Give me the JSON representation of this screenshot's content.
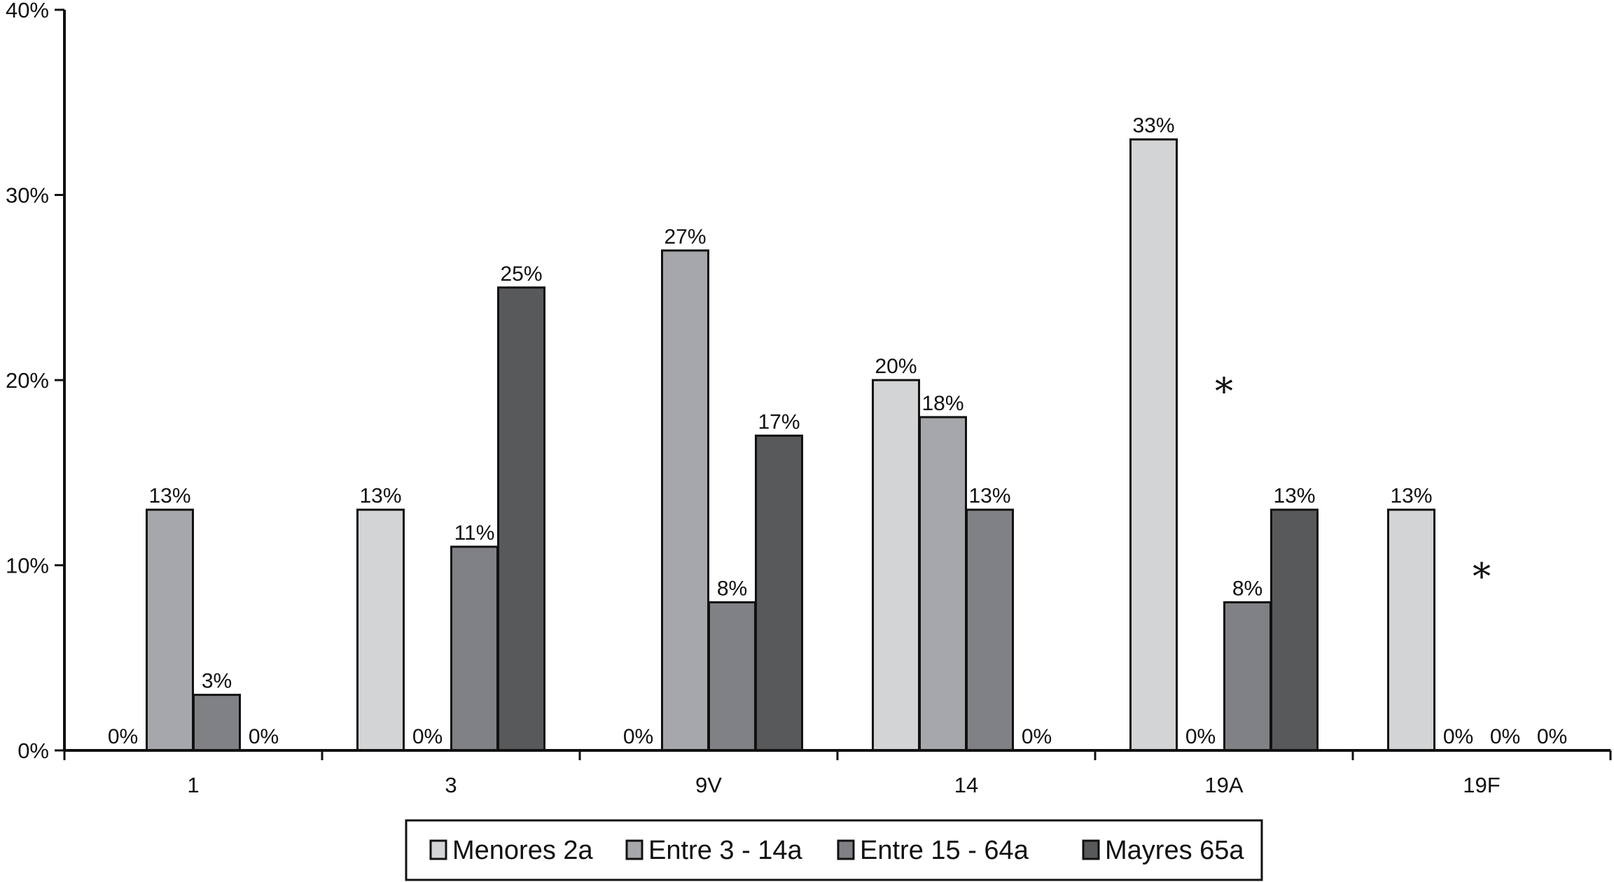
{
  "chart_data": {
    "type": "bar",
    "categories": [
      "1",
      "3",
      "9V",
      "14",
      "19A",
      "19F"
    ],
    "series": [
      {
        "name": "Menores 2a",
        "color": "#d3d4d6",
        "values": [
          0,
          13,
          0,
          20,
          33,
          13
        ]
      },
      {
        "name": "Entre 3 - 14a",
        "color": "#a6a7aa",
        "values": [
          13,
          0,
          27,
          18,
          0,
          0
        ]
      },
      {
        "name": "Entre 15 - 64a",
        "color": "#808184",
        "values": [
          3,
          11,
          8,
          13,
          8,
          0
        ]
      },
      {
        "name": "Mayres 65a",
        "color": "#58595b",
        "values": [
          0,
          25,
          17,
          0,
          13,
          0
        ]
      }
    ],
    "data_labels": [
      [
        "0%",
        "13%",
        "3%",
        "0%"
      ],
      [
        "13%",
        "0%",
        "11%",
        "25%"
      ],
      [
        "0%",
        "27%",
        "8%",
        "17%"
      ],
      [
        "20%",
        "18%",
        "13%",
        "0%"
      ],
      [
        "33%",
        "0%",
        "8%",
        "13%"
      ],
      [
        "13%",
        "0%",
        "0%",
        "0%"
      ]
    ],
    "yticks": [
      "0%",
      "10%",
      "20%",
      "30%",
      "40%"
    ],
    "ylim": [
      0,
      40
    ],
    "grid": false,
    "legend_position": "bottom",
    "annotations": [
      {
        "text": "*",
        "category": "19A",
        "y": 20
      },
      {
        "text": "*",
        "category": "19F",
        "y": 10
      }
    ]
  }
}
